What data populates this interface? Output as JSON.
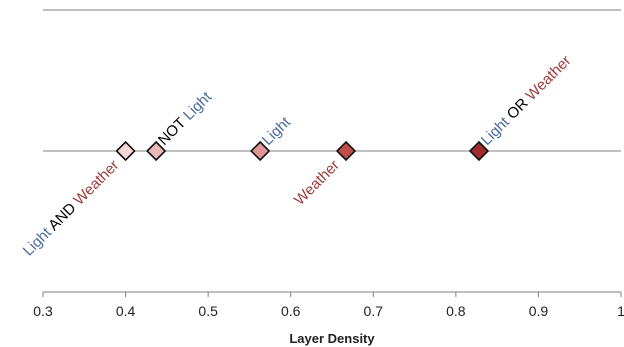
{
  "chart_data": {
    "type": "scatter",
    "title": "",
    "xlabel": "Layer Density",
    "ylabel": "",
    "xlim": [
      0.3,
      1.0
    ],
    "x_ticks": [
      0.3,
      0.4,
      0.5,
      0.6,
      0.7,
      0.8,
      0.9,
      1.0
    ],
    "x_tick_labels": [
      "0.3",
      "0.4",
      "0.5",
      "0.6",
      "0.7",
      "0.8",
      "0.9",
      "1"
    ],
    "colors": {
      "light_text": "#4a6b9a",
      "weather_text": "#9b3a3a",
      "operator_text": "#000000"
    },
    "points": [
      {
        "x": 0.4,
        "marker_color": "#f5d9d9",
        "label_side": "below",
        "label_parts": [
          {
            "text": "Light",
            "role": "light"
          },
          {
            "text": "AND",
            "role": "operator"
          },
          {
            "text": "Weather",
            "role": "weather"
          }
        ]
      },
      {
        "x": 0.437,
        "marker_color": "#ebb7b7",
        "label_side": "above",
        "label_parts": [
          {
            "text": "NOT",
            "role": "operator"
          },
          {
            "text": "Light",
            "role": "light"
          }
        ]
      },
      {
        "x": 0.563,
        "marker_color": "#de9696",
        "label_side": "above",
        "label_parts": [
          {
            "text": "Light",
            "role": "light"
          }
        ]
      },
      {
        "x": 0.667,
        "marker_color": "#c24d4d",
        "label_side": "below",
        "label_parts": [
          {
            "text": "Weather",
            "role": "weather"
          }
        ]
      },
      {
        "x": 0.828,
        "marker_color": "#9e2e2e",
        "label_side": "above",
        "label_parts": [
          {
            "text": "Light",
            "role": "light"
          },
          {
            "text": "OR",
            "role": "operator"
          },
          {
            "text": "Weather",
            "role": "weather"
          }
        ]
      }
    ]
  }
}
